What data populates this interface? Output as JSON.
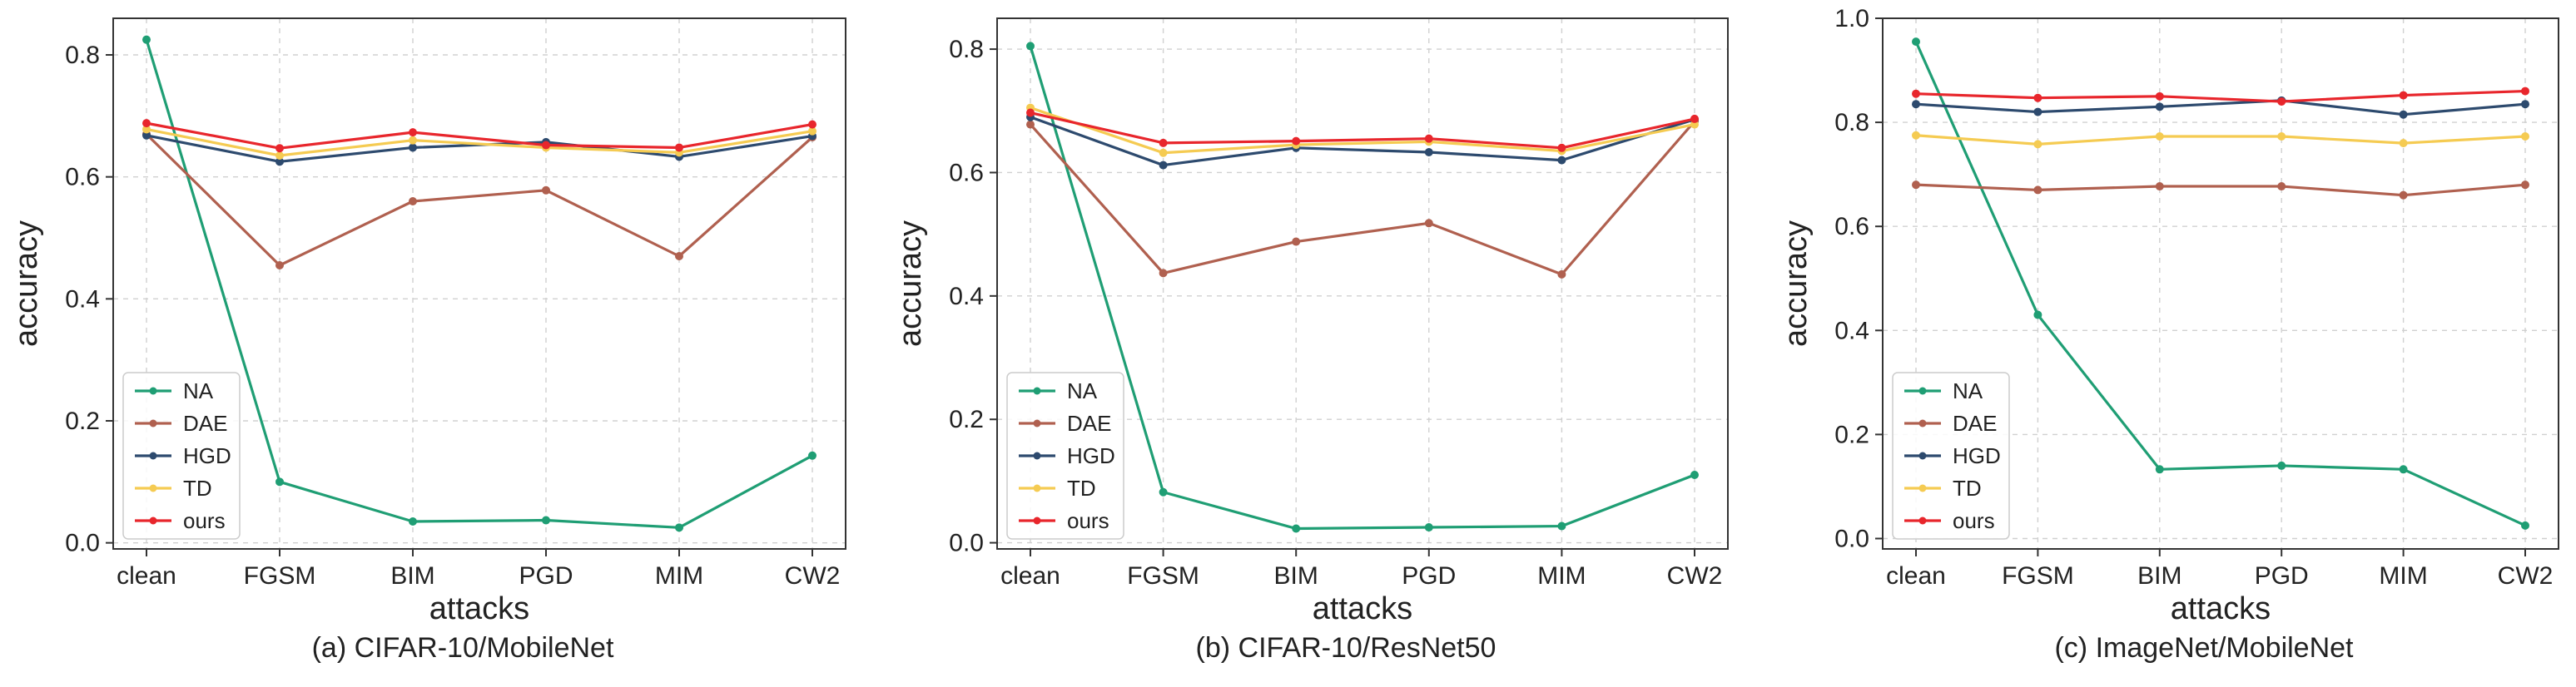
{
  "figure": {
    "captions": [
      "(a) CIFAR-10/MobileNet",
      "(b) CIFAR-10/ResNet50",
      "(c) ImageNet/MobileNet"
    ]
  },
  "chart_data": [
    {
      "type": "line",
      "title": "",
      "caption": "(a) CIFAR-10/MobileNet",
      "xlabel": "attacks",
      "ylabel": "accuracy",
      "categories": [
        "clean",
        "FGSM",
        "BIM",
        "PGD",
        "MIM",
        "CW2"
      ],
      "ylim": [
        -0.01,
        0.86
      ],
      "yticks": [
        0.0,
        0.2,
        0.4,
        0.6,
        0.8
      ],
      "ytick_labels": [
        "0.0",
        "0.2",
        "0.4",
        "0.6",
        "0.8"
      ],
      "grid": true,
      "legend": "lower-left",
      "series": [
        {
          "name": "NA",
          "color": "#1f9e74",
          "values": [
            0.825,
            0.1,
            0.035,
            0.037,
            0.025,
            0.143
          ]
        },
        {
          "name": "DAE",
          "color": "#b0604f",
          "values": [
            0.67,
            0.455,
            0.56,
            0.578,
            0.47,
            0.665
          ]
        },
        {
          "name": "HGD",
          "color": "#2d4a6e",
          "values": [
            0.668,
            0.625,
            0.648,
            0.657,
            0.633,
            0.667
          ]
        },
        {
          "name": "TD",
          "color": "#f5cb52",
          "values": [
            0.678,
            0.635,
            0.66,
            0.648,
            0.64,
            0.675
          ]
        },
        {
          "name": "ours",
          "color": "#e8262c",
          "values": [
            0.688,
            0.647,
            0.673,
            0.652,
            0.648,
            0.686
          ]
        }
      ]
    },
    {
      "type": "line",
      "title": "",
      "caption": "(b) CIFAR-10/ResNet50",
      "xlabel": "attacks",
      "ylabel": "accuracy",
      "categories": [
        "clean",
        "FGSM",
        "BIM",
        "PGD",
        "MIM",
        "CW2"
      ],
      "ylim": [
        -0.01,
        0.85
      ],
      "yticks": [
        0.0,
        0.2,
        0.4,
        0.6,
        0.8
      ],
      "ytick_labels": [
        "0.0",
        "0.2",
        "0.4",
        "0.6",
        "0.8"
      ],
      "grid": true,
      "legend": "lower-left",
      "series": [
        {
          "name": "NA",
          "color": "#1f9e74",
          "values": [
            0.805,
            0.082,
            0.023,
            0.025,
            0.027,
            0.11
          ]
        },
        {
          "name": "DAE",
          "color": "#b0604f",
          "values": [
            0.678,
            0.437,
            0.488,
            0.518,
            0.435,
            0.683
          ]
        },
        {
          "name": "HGD",
          "color": "#2d4a6e",
          "values": [
            0.69,
            0.612,
            0.64,
            0.633,
            0.62,
            0.686
          ]
        },
        {
          "name": "TD",
          "color": "#f5cb52",
          "values": [
            0.705,
            0.632,
            0.645,
            0.65,
            0.635,
            0.678
          ]
        },
        {
          "name": "ours",
          "color": "#e8262c",
          "values": [
            0.697,
            0.648,
            0.651,
            0.655,
            0.64,
            0.687
          ]
        }
      ]
    },
    {
      "type": "line",
      "title": "",
      "caption": "(c) ImageNet/MobileNet",
      "xlabel": "attacks",
      "ylabel": "accuracy",
      "categories": [
        "clean",
        "FGSM",
        "BIM",
        "PGD",
        "MIM",
        "CW2"
      ],
      "ylim": [
        -0.02,
        1.0
      ],
      "yticks": [
        0.0,
        0.2,
        0.4,
        0.6,
        0.8,
        1.0
      ],
      "ytick_labels": [
        "0.0",
        "0.2",
        "0.4",
        "0.6",
        "0.8",
        "1.0"
      ],
      "grid": true,
      "legend": "lower-left",
      "series": [
        {
          "name": "NA",
          "color": "#1f9e74",
          "values": [
            0.955,
            0.43,
            0.133,
            0.14,
            0.133,
            0.025
          ]
        },
        {
          "name": "DAE",
          "color": "#b0604f",
          "values": [
            0.68,
            0.67,
            0.677,
            0.677,
            0.66,
            0.68
          ]
        },
        {
          "name": "HGD",
          "color": "#2d4a6e",
          "values": [
            0.835,
            0.82,
            0.83,
            0.842,
            0.815,
            0.835
          ]
        },
        {
          "name": "TD",
          "color": "#f5cb52",
          "values": [
            0.775,
            0.758,
            0.773,
            0.773,
            0.76,
            0.773
          ]
        },
        {
          "name": "ours",
          "color": "#e8262c",
          "values": [
            0.855,
            0.847,
            0.85,
            0.84,
            0.852,
            0.86
          ]
        }
      ]
    }
  ]
}
